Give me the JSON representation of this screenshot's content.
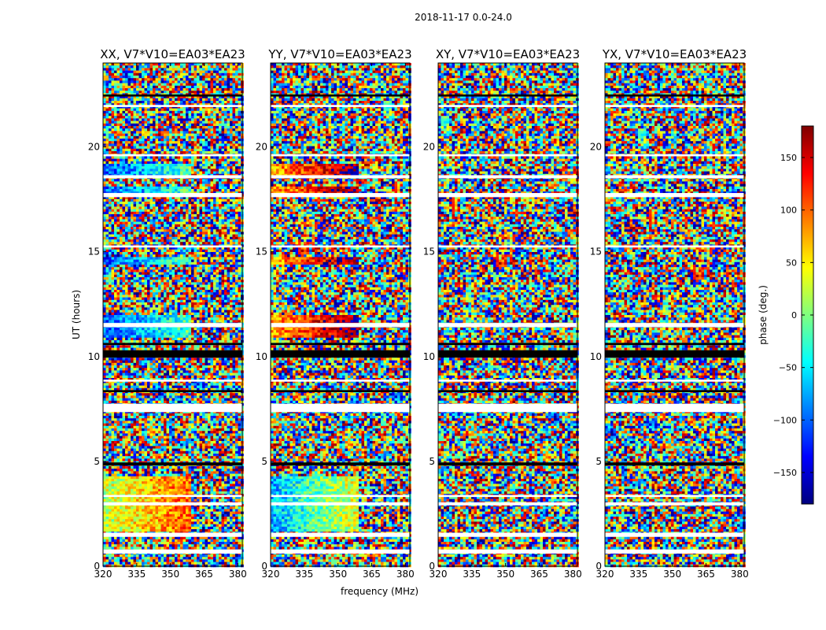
{
  "figure": {
    "suptitle": "2018-11-17 0.0-24.0"
  },
  "chart_data": [
    {
      "type": "heatmap",
      "title": "XX, V7*V10=EA03*EA23",
      "xlabel": "",
      "ylabel": "UT (hours)",
      "xlim": [
        320,
        382
      ],
      "ylim": [
        0,
        24
      ],
      "xticks": [
        320,
        335,
        350,
        365,
        380
      ],
      "yticks": [
        0,
        5,
        10,
        15,
        20
      ],
      "zlabel": "phase (deg.)"
    },
    {
      "type": "heatmap",
      "title": "YY, V7*V10=EA03*EA23",
      "xlabel": "frequency (MHz)",
      "ylabel": "",
      "xlim": [
        320,
        382
      ],
      "ylim": [
        0,
        24
      ],
      "xticks": [
        320,
        335,
        350,
        365,
        380
      ],
      "yticks": [
        0,
        5,
        10,
        15,
        20
      ],
      "zlabel": "phase (deg.)"
    },
    {
      "type": "heatmap",
      "title": "XY, V7*V10=EA03*EA23",
      "xlabel": "",
      "ylabel": "",
      "xlim": [
        320,
        382
      ],
      "ylim": [
        0,
        24
      ],
      "xticks": [
        320,
        335,
        350,
        365,
        380
      ],
      "yticks": [
        0,
        5,
        10,
        15,
        20
      ],
      "zlabel": "phase (deg.)"
    },
    {
      "type": "heatmap",
      "title": "YX, V7*V10=EA03*EA23",
      "xlabel": "",
      "ylabel": "",
      "xlim": [
        320,
        382
      ],
      "ylim": [
        0,
        24
      ],
      "xticks": [
        320,
        335,
        350,
        365,
        380
      ],
      "yticks": [
        0,
        5,
        10,
        15,
        20
      ],
      "zlabel": "phase (deg.)"
    }
  ],
  "colorbar": {
    "label": "phase (deg.)",
    "range": [
      -180,
      180
    ],
    "ticks": [
      -150,
      -100,
      -50,
      0,
      50,
      100,
      150
    ],
    "colormap": "jet",
    "colors": [
      "#00007f",
      "#0000ff",
      "#007fff",
      "#00ffff",
      "#7fff7f",
      "#ffff00",
      "#ff7f00",
      "#ff0000",
      "#7f0000"
    ]
  },
  "bands": {
    "flagged_hours": [
      [
        0.6,
        0.8
      ],
      [
        1.4,
        1.6
      ],
      [
        2.9,
        3.05
      ],
      [
        3.3,
        3.4
      ],
      [
        7.35,
        7.75
      ],
      [
        8.8,
        8.9
      ],
      [
        11.4,
        11.6
      ],
      [
        15.2,
        15.3
      ],
      [
        17.6,
        17.8
      ],
      [
        18.5,
        18.65
      ],
      [
        19.55,
        19.65
      ],
      [
        21.9,
        22.0
      ]
    ],
    "black_hours": [
      [
        4.8,
        4.95
      ],
      [
        8.3,
        8.4
      ],
      [
        9.95,
        10.3
      ],
      [
        10.55,
        10.65
      ],
      [
        22.4,
        22.5
      ]
    ]
  }
}
